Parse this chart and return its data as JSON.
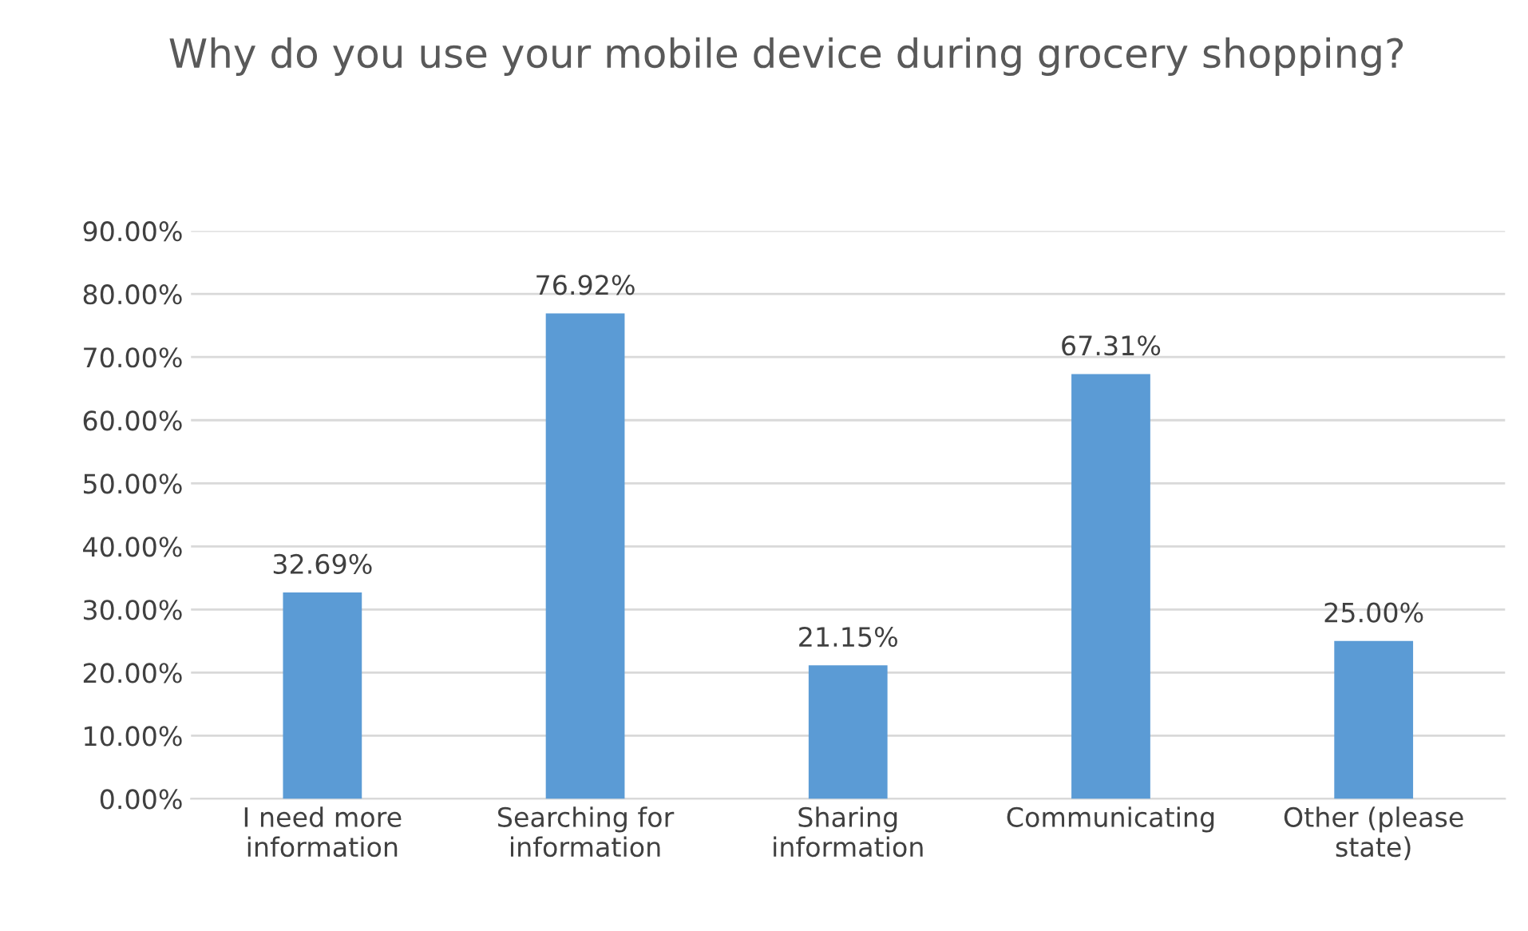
{
  "chart_data": {
    "type": "bar",
    "title": "Why do you use your mobile device during grocery shopping?",
    "categories": [
      "I need more\ninformation",
      "Searching for\ninformation",
      "Sharing\ninformation",
      "Communicating",
      "Other (please\nstate)"
    ],
    "values": [
      32.69,
      76.92,
      21.15,
      67.31,
      25.0
    ],
    "value_labels": [
      "32.69%",
      "76.92%",
      "21.15%",
      "67.31%",
      "25.00%"
    ],
    "color": "#5b9bd5",
    "ylim": [
      0,
      90
    ],
    "yticks": [
      {
        "value": 0,
        "label": "0.00%"
      },
      {
        "value": 10,
        "label": "10.00%"
      },
      {
        "value": 20,
        "label": "20.00%"
      },
      {
        "value": 30,
        "label": "30.00%"
      },
      {
        "value": 40,
        "label": "40.00%"
      },
      {
        "value": 50,
        "label": "50.00%"
      },
      {
        "value": 60,
        "label": "60.00%"
      },
      {
        "value": 70,
        "label": "70.00%"
      },
      {
        "value": 80,
        "label": "80.00%"
      },
      {
        "value": 90,
        "label": "90.00%"
      }
    ],
    "grid": "y",
    "legend": false
  }
}
